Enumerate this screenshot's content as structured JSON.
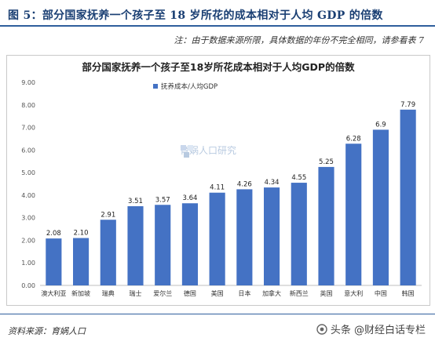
{
  "figure": {
    "title": "图 5：部分国家抚养一个孩子至 18 岁所花的成本相对于人均 GDP 的倍数",
    "note": "注：由于数据来源所限，具体数据的年份不完全相同，请参看表 7",
    "source": "资料来源：育娲人口",
    "watermark": "育娲人口研究",
    "brand": "头条 @财经白话专栏"
  },
  "colors": {
    "bar": "#4472c4",
    "rule": "#2f5e9c",
    "title": "#1a3f73"
  },
  "chart_data": {
    "type": "bar",
    "title": "部分国家抚养一个孩子至18岁所花成本相对于人均GDP的倍数",
    "categories": [
      "澳大利亚",
      "新加坡",
      "瑞典",
      "瑞士",
      "爱尔兰",
      "德国",
      "美国",
      "日本",
      "加拿大",
      "新西兰",
      "英国",
      "意大利",
      "中国",
      "韩国"
    ],
    "value_labels": [
      "2.08",
      "2.10",
      "2.91",
      "3.51",
      "3.57",
      "3.64",
      "4.11",
      "4.26",
      "4.34",
      "4.55",
      "5.25",
      "6.28",
      "6.9",
      "7.79"
    ],
    "series": [
      {
        "name": "抚养成本/人均GDP",
        "values": [
          2.08,
          2.1,
          2.91,
          3.51,
          3.57,
          3.64,
          4.11,
          4.26,
          4.34,
          4.55,
          5.25,
          6.28,
          6.9,
          7.79
        ]
      }
    ],
    "ylim": [
      0,
      9
    ],
    "yticks": [
      "0.00",
      "1.00",
      "2.00",
      "3.00",
      "4.00",
      "5.00",
      "6.00",
      "7.00",
      "8.00",
      "9.00"
    ],
    "grid": false,
    "legend_position": "top-left"
  }
}
